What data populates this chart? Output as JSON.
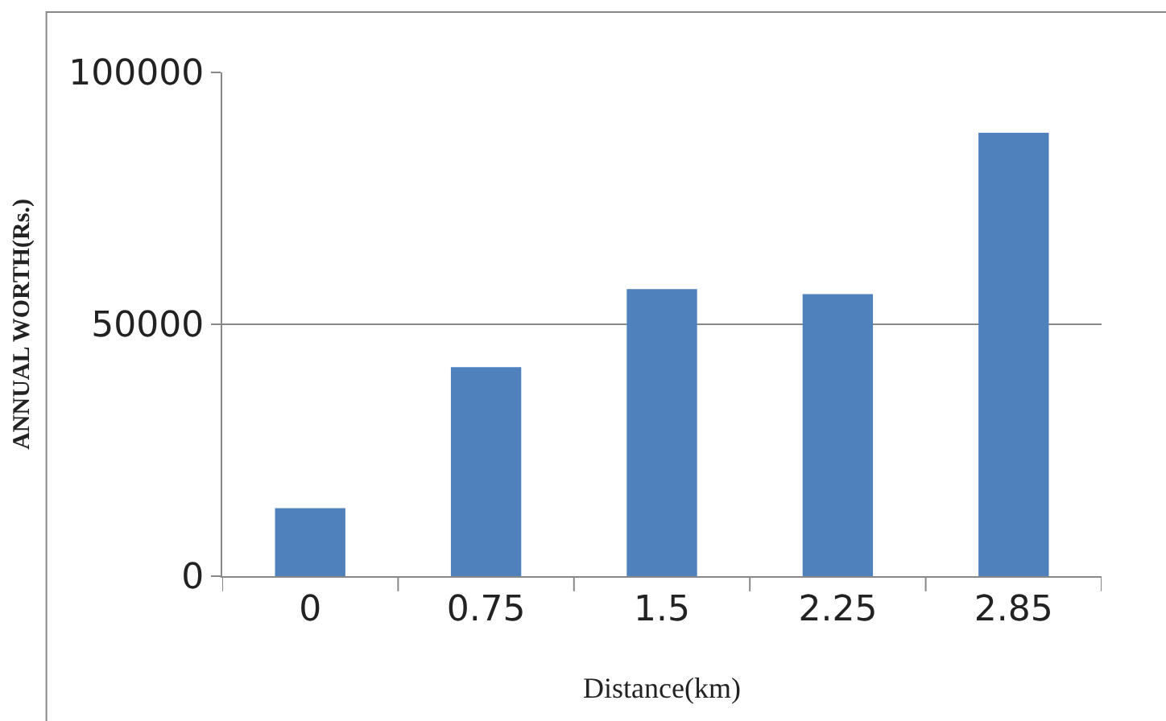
{
  "chart_data": {
    "type": "bar",
    "xlabel": "Distance(km)",
    "ylabel": "ANNUAL WORTH(Rs.)",
    "categories": [
      "0",
      "0.75",
      "1.5",
      "2.25",
      "2.85"
    ],
    "values": [
      13500,
      41500,
      57000,
      56000,
      88000
    ],
    "color": "#4f81bd",
    "ylim": [
      0,
      100000
    ],
    "yticks": [
      0,
      50000,
      100000
    ],
    "grid": "y"
  }
}
